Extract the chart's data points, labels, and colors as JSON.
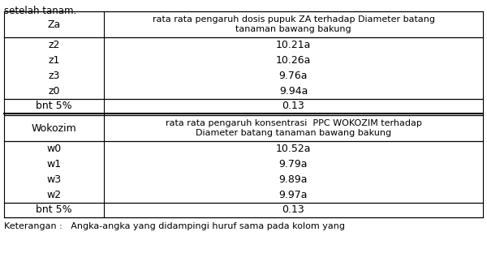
{
  "header_text": "setelah tanam.",
  "col1_header": "Za",
  "col2_header": "rata rata pengaruh dosis pupuk ZA terhadap Diameter batang\ntanaman bawang bakung",
  "za_rows": [
    [
      "z2",
      "10.21a"
    ],
    [
      "z1",
      "10.26a"
    ],
    [
      "z3",
      "9.76a"
    ],
    [
      "z0",
      "9.94a"
    ]
  ],
  "za_bnt": [
    "bnt 5%",
    "0.13"
  ],
  "col1_header2": "Wokozim",
  "col2_header2": "rata rata pengaruh konsentrasi  PPC WOKOZIM terhadap\nDiameter batang tanaman bawang bakung",
  "wokozim_rows": [
    [
      "w0",
      "10.52a"
    ],
    [
      "w1",
      "9.79a"
    ],
    [
      "w3",
      "9.89a"
    ],
    [
      "w2",
      "9.97a"
    ]
  ],
  "wokozim_bnt": [
    "bnt 5%",
    "0.13"
  ],
  "footer": "Keterangan :   Angka-angka yang didampingi huruf sama pada kolom yang",
  "bg_color": "#ffffff",
  "text_color": "#000000"
}
